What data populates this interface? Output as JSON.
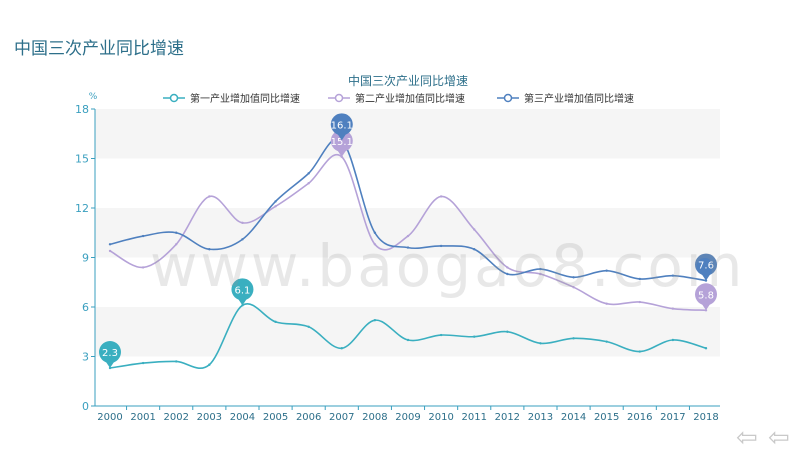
{
  "page": {
    "title": "中国三次产业同比增速",
    "watermark": "www.baogao8.com"
  },
  "nav": {
    "prev_icon": "back-arrow-icon",
    "next_icon": "back-arrow-icon"
  },
  "colors": {
    "primary": "#3aafc0",
    "secondary": "#b5a2d8",
    "tertiary": "#4f80bf",
    "axis": "#3a9fbf"
  },
  "chart_data": {
    "type": "line",
    "title": "中国三次产业同比增速",
    "ylabel": "%",
    "ylim": [
      0,
      18
    ],
    "yticks": [
      0,
      3,
      6,
      9,
      12,
      15,
      18
    ],
    "categories": [
      "2000",
      "2001",
      "2002",
      "2003",
      "2004",
      "2005",
      "2006",
      "2007",
      "2008",
      "2009",
      "2010",
      "2011",
      "2012",
      "2013",
      "2014",
      "2015",
      "2016",
      "2017",
      "2018"
    ],
    "legend_position": "top",
    "series": [
      {
        "name": "第一产业增加值同比增速",
        "color": "#3aafc0",
        "values": [
          2.3,
          2.6,
          2.7,
          2.5,
          6.1,
          5.1,
          4.8,
          3.5,
          5.2,
          4.0,
          4.3,
          4.2,
          4.5,
          3.8,
          4.1,
          3.9,
          3.3,
          4.0,
          3.5
        ],
        "callouts": [
          {
            "index": 0,
            "label": "2.3"
          },
          {
            "index": 4,
            "label": "6.1"
          }
        ]
      },
      {
        "name": "第二产业增加值同比增速",
        "color": "#b5a2d8",
        "values": [
          9.4,
          8.4,
          9.8,
          12.7,
          11.1,
          12.1,
          13.5,
          15.1,
          9.8,
          10.3,
          12.7,
          10.7,
          8.4,
          8.0,
          7.2,
          6.2,
          6.3,
          5.9,
          5.8
        ],
        "callouts": [
          {
            "index": 7,
            "label": "15.1"
          },
          {
            "index": 18,
            "label": "5.8"
          }
        ]
      },
      {
        "name": "第三产业增加值同比增速",
        "color": "#4f80bf",
        "values": [
          9.8,
          10.3,
          10.5,
          9.5,
          10.1,
          12.4,
          14.1,
          16.1,
          10.5,
          9.6,
          9.7,
          9.5,
          8.0,
          8.3,
          7.8,
          8.2,
          7.7,
          7.9,
          7.6
        ],
        "callouts": [
          {
            "index": 7,
            "label": "16.1"
          },
          {
            "index": 18,
            "label": "7.6"
          }
        ]
      }
    ]
  }
}
